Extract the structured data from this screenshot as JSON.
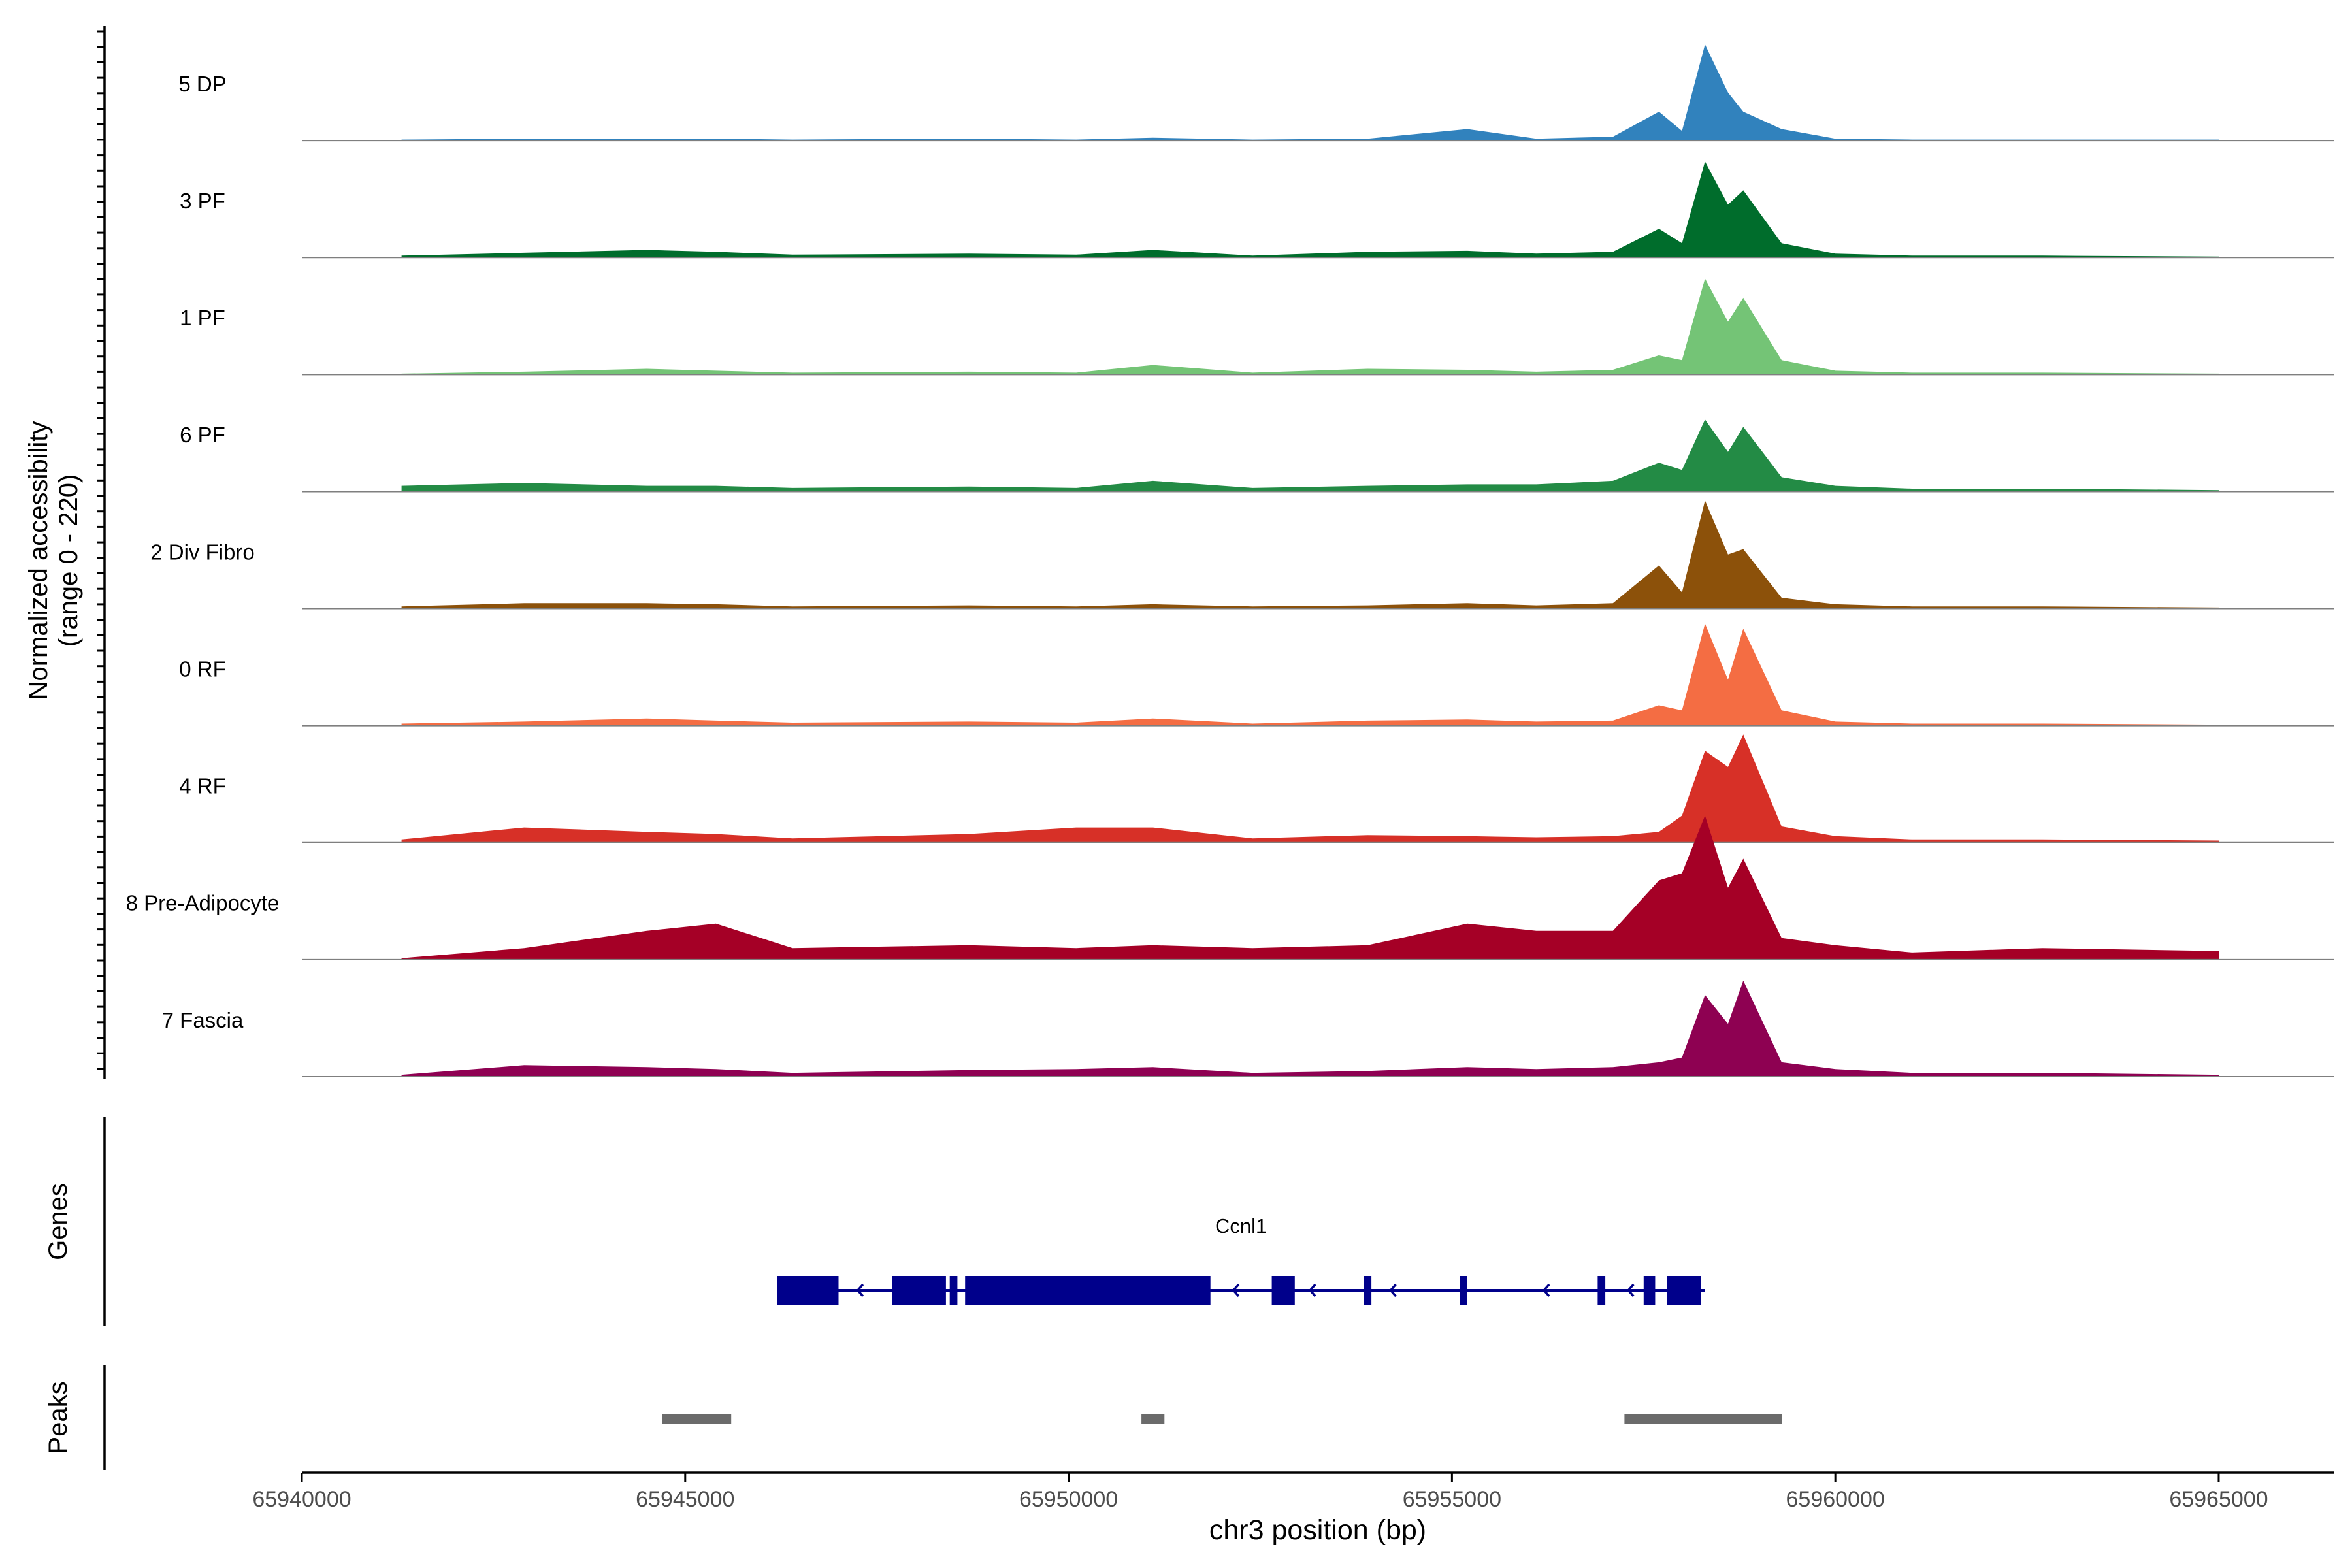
{
  "chart_data": {
    "type": "area",
    "ylabel_line1": "Normalized accessibility",
    "ylabel_line2": "(range 0 - 220)",
    "ylim": [
      0,
      220
    ],
    "xlabel": "chr3 position (bp)",
    "xlim": [
      65940000,
      65966500
    ],
    "x_ticks": [
      65940000,
      65945000,
      65950000,
      65955000,
      65960000,
      65965000
    ],
    "x_tick_labels": [
      "65940000",
      "65945000",
      "65950000",
      "65955000",
      "65960000",
      "65965000"
    ],
    "coverage_profile": {
      "x": [
        65941300,
        65942900,
        65944500,
        65945400,
        65946400,
        65948700,
        65950100,
        65951100,
        65952400,
        65953900,
        65955200,
        65956100,
        65957100,
        65957700,
        65958000,
        65958300,
        65958600,
        65958800,
        65959300,
        65960000,
        65961000,
        65962700,
        65965000
      ],
      "relative": [
        0.02,
        0.05,
        0.08,
        0.06,
        0.03,
        0.04,
        0.03,
        0.08,
        0.02,
        0.05,
        0.07,
        0.04,
        0.06,
        0.25,
        0.15,
        1.0,
        0.55,
        0.85,
        0.15,
        0.05,
        0.02,
        0.02,
        0.01
      ]
    },
    "series": [
      {
        "name": "5 DP",
        "color": "#3182bd",
        "peak": 80,
        "profile": [
          0.01,
          0.02,
          0.02,
          0.02,
          0.01,
          0.02,
          0.01,
          0.03,
          0.01,
          0.02,
          0.12,
          0.02,
          0.04,
          0.3,
          0.1,
          1.0,
          0.5,
          0.3,
          0.12,
          0.02,
          0.01,
          0.01,
          0.01
        ]
      },
      {
        "name": "3 PF",
        "color": "#006d2c",
        "peak": 80,
        "profile": [
          0.02,
          0.05,
          0.08,
          0.06,
          0.03,
          0.04,
          0.03,
          0.08,
          0.02,
          0.06,
          0.07,
          0.04,
          0.06,
          0.3,
          0.15,
          1.0,
          0.55,
          0.7,
          0.15,
          0.04,
          0.02,
          0.02,
          0.01
        ]
      },
      {
        "name": "1 PF",
        "color": "#74c476",
        "peak": 80,
        "profile": [
          0.01,
          0.03,
          0.06,
          0.04,
          0.02,
          0.03,
          0.02,
          0.1,
          0.02,
          0.06,
          0.05,
          0.03,
          0.05,
          0.2,
          0.15,
          1.0,
          0.55,
          0.8,
          0.15,
          0.04,
          0.02,
          0.02,
          0.01
        ]
      },
      {
        "name": "6 PF",
        "color": "#238b45",
        "peak": 60,
        "profile": [
          0.08,
          0.12,
          0.08,
          0.08,
          0.05,
          0.07,
          0.05,
          0.15,
          0.05,
          0.08,
          0.1,
          0.1,
          0.15,
          0.4,
          0.3,
          1.0,
          0.55,
          0.9,
          0.2,
          0.08,
          0.04,
          0.04,
          0.02
        ]
      },
      {
        "name": "2 Div Fibro",
        "color": "#8c510a",
        "peak": 90,
        "profile": [
          0.02,
          0.05,
          0.05,
          0.04,
          0.02,
          0.03,
          0.02,
          0.04,
          0.02,
          0.03,
          0.05,
          0.03,
          0.05,
          0.4,
          0.15,
          1.0,
          0.5,
          0.55,
          0.1,
          0.04,
          0.02,
          0.02,
          0.01
        ]
      },
      {
        "name": "0 RF",
        "color": "#f46d43",
        "peak": 85,
        "profile": [
          0.02,
          0.04,
          0.07,
          0.05,
          0.03,
          0.04,
          0.03,
          0.07,
          0.02,
          0.05,
          0.06,
          0.04,
          0.05,
          0.2,
          0.15,
          1.0,
          0.45,
          0.95,
          0.15,
          0.04,
          0.02,
          0.02,
          0.01
        ]
      },
      {
        "name": "4 RF",
        "color": "#d73027",
        "peak": 90,
        "profile": [
          0.03,
          0.14,
          0.1,
          0.08,
          0.04,
          0.08,
          0.14,
          0.14,
          0.04,
          0.07,
          0.06,
          0.05,
          0.06,
          0.1,
          0.25,
          0.85,
          0.7,
          1.0,
          0.15,
          0.06,
          0.03,
          0.03,
          0.02
        ]
      },
      {
        "name": "8 Pre-Adipocyte",
        "color": "#a50026",
        "peak": 120,
        "profile": [
          0.01,
          0.08,
          0.2,
          0.25,
          0.08,
          0.1,
          0.08,
          0.1,
          0.08,
          0.1,
          0.25,
          0.2,
          0.2,
          0.55,
          0.6,
          1.0,
          0.5,
          0.7,
          0.15,
          0.1,
          0.05,
          0.08,
          0.06
        ]
      },
      {
        "name": "7 Fascia",
        "color": "#8e0152",
        "peak": 80,
        "profile": [
          0.02,
          0.12,
          0.1,
          0.08,
          0.04,
          0.07,
          0.08,
          0.1,
          0.04,
          0.06,
          0.1,
          0.08,
          0.1,
          0.15,
          0.2,
          0.85,
          0.55,
          1.0,
          0.15,
          0.08,
          0.04,
          0.04,
          0.02
        ]
      }
    ],
    "genes_panel": {
      "title": "Genes",
      "gene_name": "Ccnl1",
      "strand": "-",
      "color": "#00008b",
      "span": [
        65946200,
        65958300
      ],
      "exons": [
        [
          65946200,
          65947000
        ],
        [
          65947700,
          65948400
        ],
        [
          65948450,
          65948550
        ],
        [
          65948650,
          65951850
        ],
        [
          65952650,
          65952950
        ],
        [
          65953850,
          65953950
        ],
        [
          65955100,
          65955200
        ],
        [
          65956900,
          65957000
        ],
        [
          65957500,
          65957650
        ],
        [
          65957800,
          65958250
        ]
      ],
      "arrows_at": [
        65947250,
        65952150,
        65953150,
        65954200,
        65956200,
        65957300
      ]
    },
    "peaks_panel": {
      "title": "Peaks",
      "color": "#6b6b6b",
      "peaks": [
        [
          65944700,
          65945600
        ],
        [
          65950950,
          65951250
        ],
        [
          65957250,
          65959300
        ]
      ]
    }
  }
}
